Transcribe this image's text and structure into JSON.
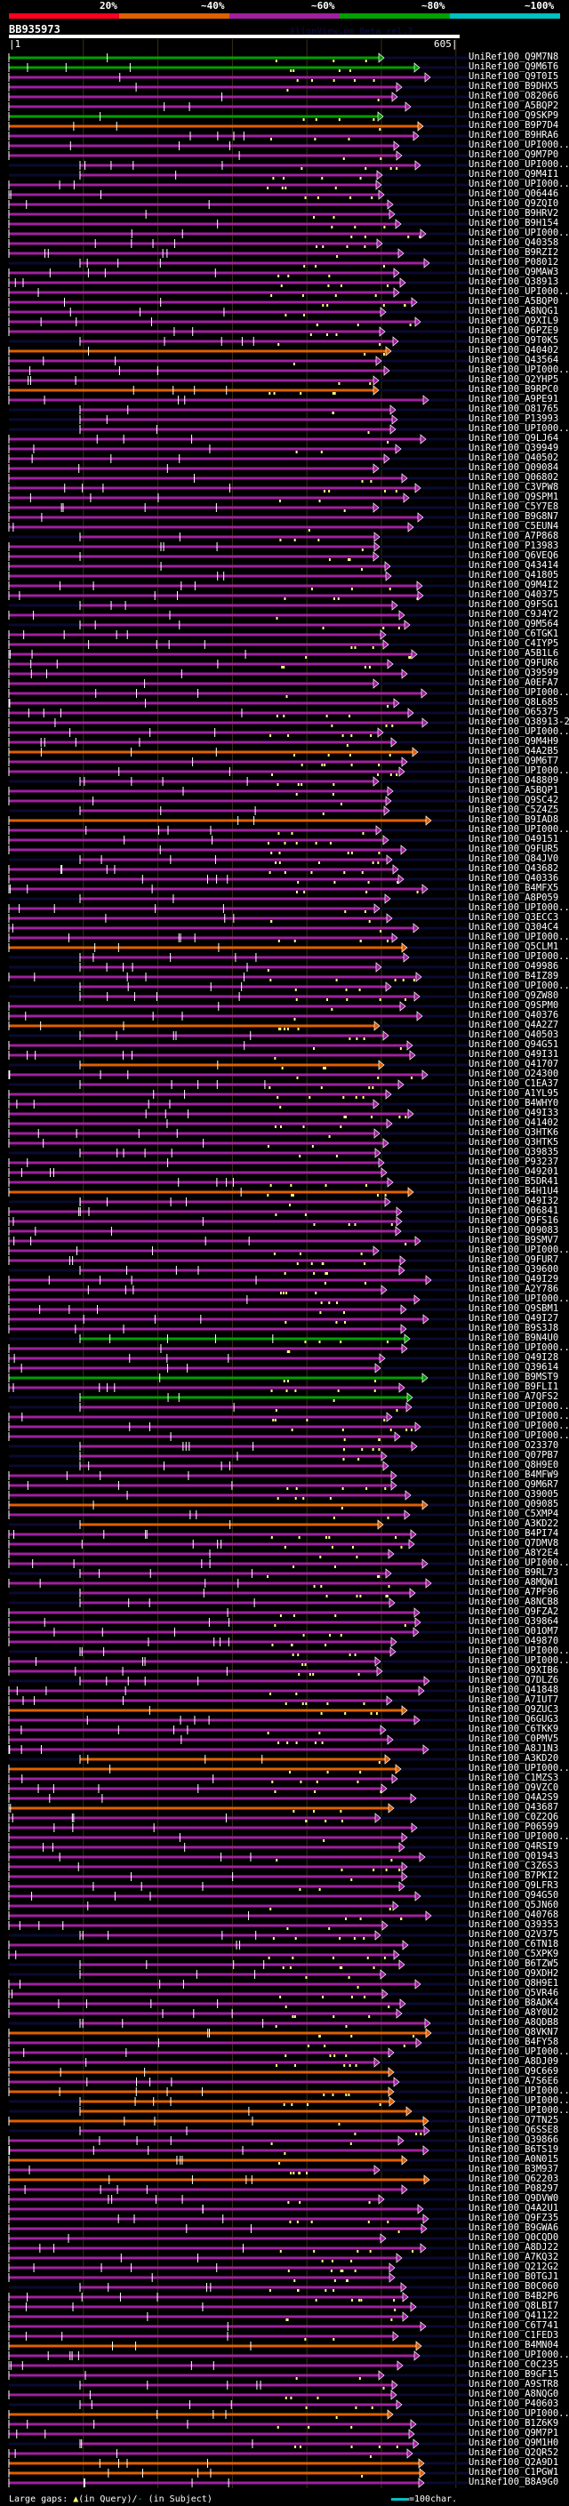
{
  "color_scale": {
    "labels": [
      "20%",
      "~40%",
      "~60%",
      "~80%",
      "~100%"
    ],
    "colors": [
      "#ff0020",
      "#e06000",
      "#a020a0",
      "#00a000",
      "#00c0c0"
    ]
  },
  "query": {
    "id": "BB935973",
    "program": "AlignView.pm Beta rel.7",
    "ruler_start": "1",
    "ruler_end": "605|",
    "length": 605
  },
  "footer": {
    "gaps_label": "Large gaps:",
    "in_query": "(in Query)/",
    "in_subject": "(in Subject)",
    "scale_label": "=100char."
  },
  "hits": [
    {
      "label": "UniRef100_Q9M7N8",
      "c": "g"
    },
    {
      "label": "UniRef100_Q9M6T6",
      "c": "g"
    },
    {
      "label": "UniRef100_Q9T0I5",
      "c": "p"
    },
    {
      "label": "UniRef100_B9DHX5",
      "c": "p"
    },
    {
      "label": "UniRef100_O82066",
      "c": "p"
    },
    {
      "label": "UniRef100_A5BQP2",
      "c": "p"
    },
    {
      "label": "UniRef100_Q9SKP9",
      "c": "g"
    },
    {
      "label": "UniRef100_B9P7D4",
      "c": "o"
    },
    {
      "label": "UniRef100_B9HRA6",
      "c": "p"
    },
    {
      "label": "UniRef100_UPI000..",
      "c": "p"
    },
    {
      "label": "UniRef100_Q9M7P0",
      "c": "p"
    },
    {
      "label": "UniRef100_UPI000..",
      "c": "p"
    },
    {
      "label": "UniRef100_Q9M4I1",
      "c": "p"
    },
    {
      "label": "UniRef100_UPI000..",
      "c": "p"
    },
    {
      "label": "UniRef100_Q06446",
      "c": "p"
    },
    {
      "label": "UniRef100_Q9ZQI0",
      "c": "p"
    },
    {
      "label": "UniRef100_B9HRV2",
      "c": "p"
    },
    {
      "label": "UniRef100_B9H154",
      "c": "p"
    },
    {
      "label": "UniRef100_UPI000..",
      "c": "p"
    },
    {
      "label": "UniRef100_Q40358",
      "c": "p"
    },
    {
      "label": "UniRef100_B9RZI2",
      "c": "p"
    },
    {
      "label": "UniRef100_P08012",
      "c": "p"
    },
    {
      "label": "UniRef100_Q9MAW3",
      "c": "p"
    },
    {
      "label": "UniRef100_Q38913",
      "c": "p"
    },
    {
      "label": "UniRef100_UPI000..",
      "c": "p"
    },
    {
      "label": "UniRef100_A5BQP0",
      "c": "p"
    },
    {
      "label": "UniRef100_A8NQG1",
      "c": "p"
    },
    {
      "label": "UniRef100_Q9XIL9",
      "c": "p"
    },
    {
      "label": "UniRef100_Q6PZE9",
      "c": "p"
    },
    {
      "label": "UniRef100_Q9T0K5",
      "c": "p"
    },
    {
      "label": "UniRef100_Q40402",
      "c": "o"
    },
    {
      "label": "UniRef100_Q43564",
      "c": "p"
    },
    {
      "label": "UniRef100_UPI000..",
      "c": "p"
    },
    {
      "label": "UniRef100_Q2YHP5",
      "c": "p"
    },
    {
      "label": "UniRef100_B9RPC0",
      "c": "o"
    },
    {
      "label": "UniRef100_A9PE91",
      "c": "p"
    },
    {
      "label": "UniRef100_O81765",
      "c": "p"
    },
    {
      "label": "UniRef100_P13993",
      "c": "p"
    },
    {
      "label": "UniRef100_UPI000..",
      "c": "p"
    },
    {
      "label": "UniRef100_Q9LJ64",
      "c": "p"
    },
    {
      "label": "UniRef100_Q39949",
      "c": "p"
    },
    {
      "label": "UniRef100_Q40502",
      "c": "p"
    },
    {
      "label": "UniRef100_Q09084",
      "c": "p"
    },
    {
      "label": "UniRef100_Q06802",
      "c": "p"
    },
    {
      "label": "UniRef100_C3VPW8",
      "c": "p"
    },
    {
      "label": "UniRef100_Q9SPM1",
      "c": "p"
    },
    {
      "label": "UniRef100_C5Y7E8",
      "c": "p"
    },
    {
      "label": "UniRef100_B9G8N7",
      "c": "p"
    },
    {
      "label": "UniRef100_C5EUN4",
      "c": "p"
    },
    {
      "label": "UniRef100_A7P868",
      "c": "p"
    },
    {
      "label": "UniRef100_P13983",
      "c": "p"
    },
    {
      "label": "UniRef100_Q6VEQ6",
      "c": "p"
    },
    {
      "label": "UniRef100_Q43414",
      "c": "p"
    },
    {
      "label": "UniRef100_Q41805",
      "c": "p"
    },
    {
      "label": "UniRef100_Q9M4I2",
      "c": "p"
    },
    {
      "label": "UniRef100_Q40375",
      "c": "p"
    },
    {
      "label": "UniRef100_Q9FSG1",
      "c": "p"
    },
    {
      "label": "UniRef100_C9J4Y2",
      "c": "p"
    },
    {
      "label": "UniRef100_Q9M564",
      "c": "p"
    },
    {
      "label": "UniRef100_C6TGK1",
      "c": "p"
    },
    {
      "label": "UniRef100_C4IYP5",
      "c": "p"
    },
    {
      "label": "UniRef100_A5B1L6",
      "c": "p"
    },
    {
      "label": "UniRef100_Q9FUR6",
      "c": "p"
    },
    {
      "label": "UniRef100_Q39599",
      "c": "p"
    },
    {
      "label": "UniRef100_A0EFA7",
      "c": "p"
    },
    {
      "label": "UniRef100_UPI000..",
      "c": "p"
    },
    {
      "label": "UniRef100_Q8L685",
      "c": "p"
    },
    {
      "label": "UniRef100_O65375",
      "c": "p"
    },
    {
      "label": "UniRef100_Q38913-2",
      "c": "p"
    },
    {
      "label": "UniRef100_UPI000..",
      "c": "p"
    },
    {
      "label": "UniRef100_Q9M4H9",
      "c": "p"
    },
    {
      "label": "UniRef100_Q4A2B5",
      "c": "o"
    },
    {
      "label": "UniRef100_Q9M6T7",
      "c": "p"
    },
    {
      "label": "UniRef100_UPI000..",
      "c": "p"
    },
    {
      "label": "UniRef100_O48809",
      "c": "p"
    },
    {
      "label": "UniRef100_A5BQP1",
      "c": "p"
    },
    {
      "label": "UniRef100_Q9SC42",
      "c": "p"
    },
    {
      "label": "UniRef100_C5Z4Z5",
      "c": "p"
    },
    {
      "label": "UniRef100_B9IAD8",
      "c": "o"
    },
    {
      "label": "UniRef100_UPI000..",
      "c": "p"
    },
    {
      "label": "UniRef100_O49151",
      "c": "p"
    },
    {
      "label": "UniRef100_Q9FUR5",
      "c": "p"
    },
    {
      "label": "UniRef100_Q84JV0",
      "c": "p"
    },
    {
      "label": "UniRef100_Q43682",
      "c": "p"
    },
    {
      "label": "UniRef100_Q40336",
      "c": "p"
    },
    {
      "label": "UniRef100_B4MFX5",
      "c": "p"
    },
    {
      "label": "UniRef100_A8P059",
      "c": "p"
    },
    {
      "label": "UniRef100_UPI000..",
      "c": "p"
    },
    {
      "label": "UniRef100_Q3ECC3",
      "c": "p"
    },
    {
      "label": "UniRef100_Q304C4",
      "c": "p"
    },
    {
      "label": "UniRef100_UPI000..",
      "c": "p"
    },
    {
      "label": "UniRef100_Q5CLM1",
      "c": "o"
    },
    {
      "label": "UniRef100_UPI000..",
      "c": "p"
    },
    {
      "label": "UniRef100_O49986",
      "c": "p"
    },
    {
      "label": "UniRef100_B4IZ89",
      "c": "p"
    },
    {
      "label": "UniRef100_UPI000..",
      "c": "p"
    },
    {
      "label": "UniRef100_Q9ZW80",
      "c": "p"
    },
    {
      "label": "UniRef100_Q9SPM0",
      "c": "p"
    },
    {
      "label": "UniRef100_Q40376",
      "c": "p"
    },
    {
      "label": "UniRef100_Q4A2Z7",
      "c": "o"
    },
    {
      "label": "UniRef100_Q40503",
      "c": "p"
    },
    {
      "label": "UniRef100_Q94G51",
      "c": "p"
    },
    {
      "label": "UniRef100_Q49I31",
      "c": "p"
    },
    {
      "label": "UniRef100_Q41707",
      "c": "o"
    },
    {
      "label": "UniRef100_O24300",
      "c": "p"
    },
    {
      "label": "UniRef100_C1EA37",
      "c": "p"
    },
    {
      "label": "UniRef100_A1YL95",
      "c": "p"
    },
    {
      "label": "UniRef100_B4WHY0",
      "c": "p"
    },
    {
      "label": "UniRef100_Q49I33",
      "c": "p"
    },
    {
      "label": "UniRef100_Q41402",
      "c": "p"
    },
    {
      "label": "UniRef100_Q3HTK6",
      "c": "p"
    },
    {
      "label": "UniRef100_Q3HTK5",
      "c": "p"
    },
    {
      "label": "UniRef100_Q39835",
      "c": "p"
    },
    {
      "label": "UniRef100_P93237",
      "c": "p"
    },
    {
      "label": "UniRef100_O49201",
      "c": "p"
    },
    {
      "label": "UniRef100_B5DR41",
      "c": "p"
    },
    {
      "label": "UniRef100_B4H1U4",
      "c": "o"
    },
    {
      "label": "UniRef100_Q49I32",
      "c": "p"
    },
    {
      "label": "UniRef100_Q06841",
      "c": "p"
    },
    {
      "label": "UniRef100_Q9FS16",
      "c": "p"
    },
    {
      "label": "UniRef100_Q09083",
      "c": "p"
    },
    {
      "label": "UniRef100_B9SMV7",
      "c": "p"
    },
    {
      "label": "UniRef100_UPI000..",
      "c": "p"
    },
    {
      "label": "UniRef100_Q9FUR7",
      "c": "p"
    },
    {
      "label": "UniRef100_Q39600",
      "c": "p"
    },
    {
      "label": "UniRef100_Q49I29",
      "c": "p"
    },
    {
      "label": "UniRef100_A2Y786",
      "c": "p"
    },
    {
      "label": "UniRef100_UPI000..",
      "c": "p"
    },
    {
      "label": "UniRef100_Q9SBM1",
      "c": "p"
    },
    {
      "label": "UniRef100_Q49I27",
      "c": "p"
    },
    {
      "label": "UniRef100_B9S3J8",
      "c": "p"
    },
    {
      "label": "UniRef100_B9N4U0",
      "c": "g"
    },
    {
      "label": "UniRef100_UPI000..",
      "c": "p"
    },
    {
      "label": "UniRef100_Q49I28",
      "c": "p"
    },
    {
      "label": "UniRef100_Q39614",
      "c": "p"
    },
    {
      "label": "UniRef100_B9MST9",
      "c": "g"
    },
    {
      "label": "UniRef100_B9FLI1",
      "c": "p"
    },
    {
      "label": "UniRef100_A7QFS2",
      "c": "g"
    },
    {
      "label": "UniRef100_UPI000..",
      "c": "p"
    },
    {
      "label": "UniRef100_UPI000..",
      "c": "p"
    },
    {
      "label": "UniRef100_UPI000..",
      "c": "p"
    },
    {
      "label": "UniRef100_UPI000..",
      "c": "p"
    },
    {
      "label": "UniRef100_O23370",
      "c": "p"
    },
    {
      "label": "UniRef100_Q07PB7",
      "c": "p"
    },
    {
      "label": "UniRef100_Q8H9E0",
      "c": "p"
    },
    {
      "label": "UniRef100_B4MFW9",
      "c": "p"
    },
    {
      "label": "UniRef100_Q9M6R7",
      "c": "p"
    },
    {
      "label": "UniRef100_Q39005",
      "c": "p"
    },
    {
      "label": "UniRef100_Q09085",
      "c": "o"
    },
    {
      "label": "UniRef100_C5XMP4",
      "c": "p"
    },
    {
      "label": "UniRef100_A3KD22",
      "c": "o"
    },
    {
      "label": "UniRef100_B4PI74",
      "c": "p"
    },
    {
      "label": "UniRef100_Q7DMV8",
      "c": "p"
    },
    {
      "label": "UniRef100_A8Y2E4",
      "c": "p"
    },
    {
      "label": "UniRef100_UPI000..",
      "c": "p"
    },
    {
      "label": "UniRef100_B9RL73",
      "c": "p"
    },
    {
      "label": "UniRef100_A8MQW1",
      "c": "p"
    },
    {
      "label": "UniRef100_A7PF96",
      "c": "p"
    },
    {
      "label": "UniRef100_A8NCB8",
      "c": "p"
    },
    {
      "label": "UniRef100_Q9FZA2",
      "c": "p"
    },
    {
      "label": "UniRef100_Q39864",
      "c": "p"
    },
    {
      "label": "UniRef100_Q01OM7",
      "c": "p"
    },
    {
      "label": "UniRef100_O49870",
      "c": "p"
    },
    {
      "label": "UniRef100_UPI000..",
      "c": "p"
    },
    {
      "label": "UniRef100_UPI000..",
      "c": "p"
    },
    {
      "label": "UniRef100_Q9XIB6",
      "c": "p"
    },
    {
      "label": "UniRef100_Q7DLZ6",
      "c": "p"
    },
    {
      "label": "UniRef100_Q41848",
      "c": "p"
    },
    {
      "label": "UniRef100_A7IUT7",
      "c": "p"
    },
    {
      "label": "UniRef100_Q9ZUC3",
      "c": "o"
    },
    {
      "label": "UniRef100_Q6GUG3",
      "c": "p"
    },
    {
      "label": "UniRef100_C6TKK9",
      "c": "p"
    },
    {
      "label": "UniRef100_C0PMV5",
      "c": "p"
    },
    {
      "label": "UniRef100_A8J1N3",
      "c": "p"
    },
    {
      "label": "UniRef100_A3KD20",
      "c": "o"
    },
    {
      "label": "UniRef100_UPI000..",
      "c": "o"
    },
    {
      "label": "UniRef100_C1MZS3",
      "c": "p"
    },
    {
      "label": "UniRef100_Q9VZC0",
      "c": "p"
    },
    {
      "label": "UniRef100_Q4A2S9",
      "c": "p"
    },
    {
      "label": "UniRef100_Q43687",
      "c": "o"
    },
    {
      "label": "UniRef100_C0Z2Q6",
      "c": "p"
    },
    {
      "label": "UniRef100_P06599",
      "c": "p"
    },
    {
      "label": "UniRef100_UPI000..",
      "c": "p"
    },
    {
      "label": "UniRef100_Q4RSI9",
      "c": "p"
    },
    {
      "label": "UniRef100_Q01943",
      "c": "p"
    },
    {
      "label": "UniRef100_C3Z6S3",
      "c": "p"
    },
    {
      "label": "UniRef100_B7PKI2",
      "c": "p"
    },
    {
      "label": "UniRef100_Q9LFR3",
      "c": "p"
    },
    {
      "label": "UniRef100_Q94G50",
      "c": "p"
    },
    {
      "label": "UniRef100_Q5JN60",
      "c": "p"
    },
    {
      "label": "UniRef100_Q40768",
      "c": "p"
    },
    {
      "label": "UniRef100_Q39353",
      "c": "p"
    },
    {
      "label": "UniRef100_Q2V375",
      "c": "p"
    },
    {
      "label": "UniRef100_C6TN18",
      "c": "p"
    },
    {
      "label": "UniRef100_C5XPK9",
      "c": "p"
    },
    {
      "label": "UniRef100_B6TZW5",
      "c": "p"
    },
    {
      "label": "UniRef100_Q9XDH2",
      "c": "p"
    },
    {
      "label": "UniRef100_Q8H9E1",
      "c": "p"
    },
    {
      "label": "UniRef100_Q5VR46",
      "c": "p"
    },
    {
      "label": "UniRef100_B8ADK4",
      "c": "p"
    },
    {
      "label": "UniRef100_A8Y0U2",
      "c": "p"
    },
    {
      "label": "UniRef100_A8QDB8",
      "c": "p"
    },
    {
      "label": "UniRef100_Q8VKN7",
      "c": "o"
    },
    {
      "label": "UniRef100_B4FY58",
      "c": "p"
    },
    {
      "label": "UniRef100_UPI000..",
      "c": "p"
    },
    {
      "label": "UniRef100_A8DJ09",
      "c": "p"
    },
    {
      "label": "UniRef100_Q9C669",
      "c": "o"
    },
    {
      "label": "UniRef100_A7S6E6",
      "c": "p"
    },
    {
      "label": "UniRef100_UPI000..",
      "c": "o"
    },
    {
      "label": "UniRef100_UPI000..",
      "c": "o"
    },
    {
      "label": "UniRef100_UPI000..",
      "c": "o"
    },
    {
      "label": "UniRef100_Q7TN25",
      "c": "o"
    },
    {
      "label": "UniRef100_Q6SSE8",
      "c": "p"
    },
    {
      "label": "UniRef100_Q39866",
      "c": "p"
    },
    {
      "label": "UniRef100_B6TS19",
      "c": "p"
    },
    {
      "label": "UniRef100_A0N015",
      "c": "o"
    },
    {
      "label": "UniRef100_B3M937",
      "c": "p"
    },
    {
      "label": "UniRef100_Q62203",
      "c": "o"
    },
    {
      "label": "UniRef100_P08297",
      "c": "p"
    },
    {
      "label": "UniRef100_Q9DVW0",
      "c": "p"
    },
    {
      "label": "UniRef100_Q4A2U1",
      "c": "p"
    },
    {
      "label": "UniRef100_Q9FZ35",
      "c": "p"
    },
    {
      "label": "UniRef100_B9GWA6",
      "c": "p"
    },
    {
      "label": "UniRef100_Q0CQD0",
      "c": "p"
    },
    {
      "label": "UniRef100_A8DJ22",
      "c": "p"
    },
    {
      "label": "UniRef100_A7KQ32",
      "c": "p"
    },
    {
      "label": "UniRef100_Q212G2",
      "c": "p"
    },
    {
      "label": "UniRef100_B0TGJ1",
      "c": "p"
    },
    {
      "label": "UniRef100_B0C060",
      "c": "p"
    },
    {
      "label": "UniRef100_B4B2P6",
      "c": "p"
    },
    {
      "label": "UniRef100_Q8LBI7",
      "c": "p"
    },
    {
      "label": "UniRef100_Q41122",
      "c": "p"
    },
    {
      "label": "UniRef100_C6T741",
      "c": "p"
    },
    {
      "label": "UniRef100_C1FED3",
      "c": "p"
    },
    {
      "label": "UniRef100_B4MN04",
      "c": "o"
    },
    {
      "label": "UniRef100_UPI000..",
      "c": "p"
    },
    {
      "label": "UniRef100_C0C235",
      "c": "p"
    },
    {
      "label": "UniRef100_B9GF15",
      "c": "p"
    },
    {
      "label": "UniRef100_A9STR8",
      "c": "p"
    },
    {
      "label": "UniRef100_A8NQG0",
      "c": "p"
    },
    {
      "label": "UniRef100_P40603",
      "c": "p"
    },
    {
      "label": "UniRef100_UPI000..",
      "c": "o"
    },
    {
      "label": "UniRef100_B1Z6K9",
      "c": "p"
    },
    {
      "label": "UniRef100_Q9M7P1",
      "c": "p"
    },
    {
      "label": "UniRef100_Q9M1H0",
      "c": "p"
    },
    {
      "label": "UniRef100_Q2QR52",
      "c": "p"
    },
    {
      "label": "UniRef100_Q2A9D1",
      "c": "o"
    },
    {
      "label": "UniRef100_C1PGW1",
      "c": "o"
    },
    {
      "label": "UniRef100_B8A9G0",
      "c": "p"
    }
  ]
}
